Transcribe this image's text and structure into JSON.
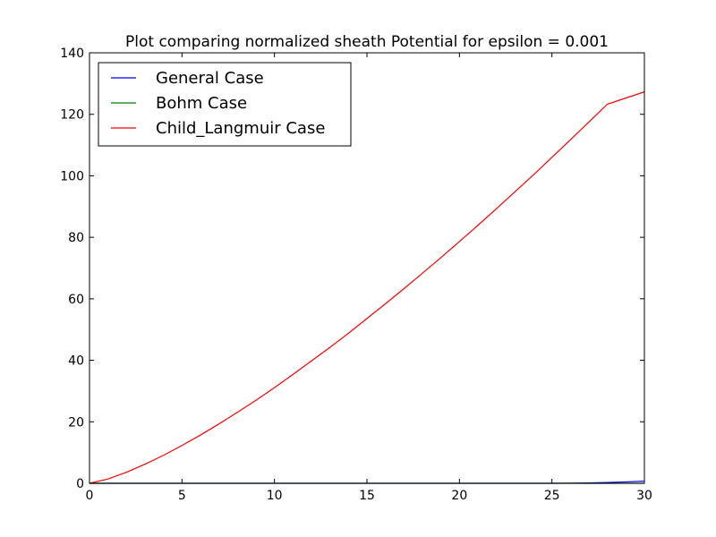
{
  "chart_data": {
    "type": "line",
    "title": "Plot comparing normalized sheath Potential for epsilon = 0.001",
    "xlabel": "",
    "ylabel": "",
    "xlim": [
      0,
      30
    ],
    "ylim": [
      0,
      140
    ],
    "x_ticks": [
      0,
      5,
      10,
      15,
      20,
      25,
      30
    ],
    "y_ticks": [
      0,
      20,
      40,
      60,
      80,
      100,
      120,
      140
    ],
    "grid": false,
    "legend_position": "upper-left",
    "x": [
      0,
      1,
      2,
      3,
      4,
      5,
      6,
      7,
      8,
      9,
      10,
      11,
      12,
      13,
      14,
      15,
      16,
      17,
      18,
      19,
      20,
      21,
      22,
      23,
      24,
      25,
      26,
      27,
      28,
      29,
      30
    ],
    "series": [
      {
        "name": "General Case",
        "color": "#0000ff",
        "values": [
          0,
          0,
          0,
          0,
          0,
          0,
          0,
          0,
          0,
          0,
          0,
          0,
          0,
          0,
          0,
          0,
          0,
          0,
          0,
          0,
          0,
          0,
          0,
          0,
          0,
          0,
          0.05,
          0.12,
          0.25,
          0.45,
          0.7
        ]
      },
      {
        "name": "Bohm Case",
        "color": "#008000",
        "values": [
          0,
          0,
          0,
          0,
          0,
          0,
          0,
          0,
          0,
          0,
          0,
          0,
          0,
          0,
          0,
          0,
          0,
          0,
          0,
          0,
          0,
          0,
          0,
          0,
          0,
          0,
          0,
          0,
          0,
          0,
          0
        ]
      },
      {
        "name": "Child_Langmuir Case",
        "color": "#ff0000",
        "values": [
          0,
          1.4,
          3.6,
          6.2,
          9.1,
          12.3,
          15.7,
          19.3,
          23.1,
          27.0,
          31.1,
          35.4,
          39.8,
          44.2,
          48.8,
          53.6,
          58.4,
          63.3,
          68.3,
          73.4,
          78.6,
          83.9,
          89.3,
          94.8,
          100.3,
          106.0,
          111.7,
          117.5,
          123.3,
          125.3,
          127.3
        ]
      }
    ]
  }
}
